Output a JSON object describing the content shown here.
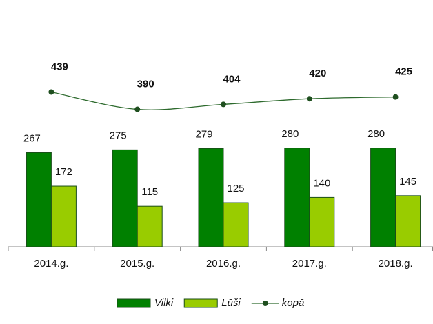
{
  "chart_data": {
    "type": "bar",
    "categories": [
      "2014.g.",
      "2015.g.",
      "2016.g.",
      "2017.g.",
      "2018.g."
    ],
    "series": [
      {
        "name": "Vilki",
        "color": "#008000",
        "values": [
          267,
          275,
          279,
          280,
          280
        ]
      },
      {
        "name": "Lūši",
        "color": "#99cc00",
        "values": [
          172,
          115,
          125,
          140,
          145
        ]
      },
      {
        "name": "kopā",
        "type": "line",
        "color": "#2d6a2d",
        "values": [
          439,
          390,
          404,
          420,
          425
        ]
      }
    ],
    "ylim": [
      0,
      700
    ],
    "grid": false,
    "legend": "bottom"
  }
}
